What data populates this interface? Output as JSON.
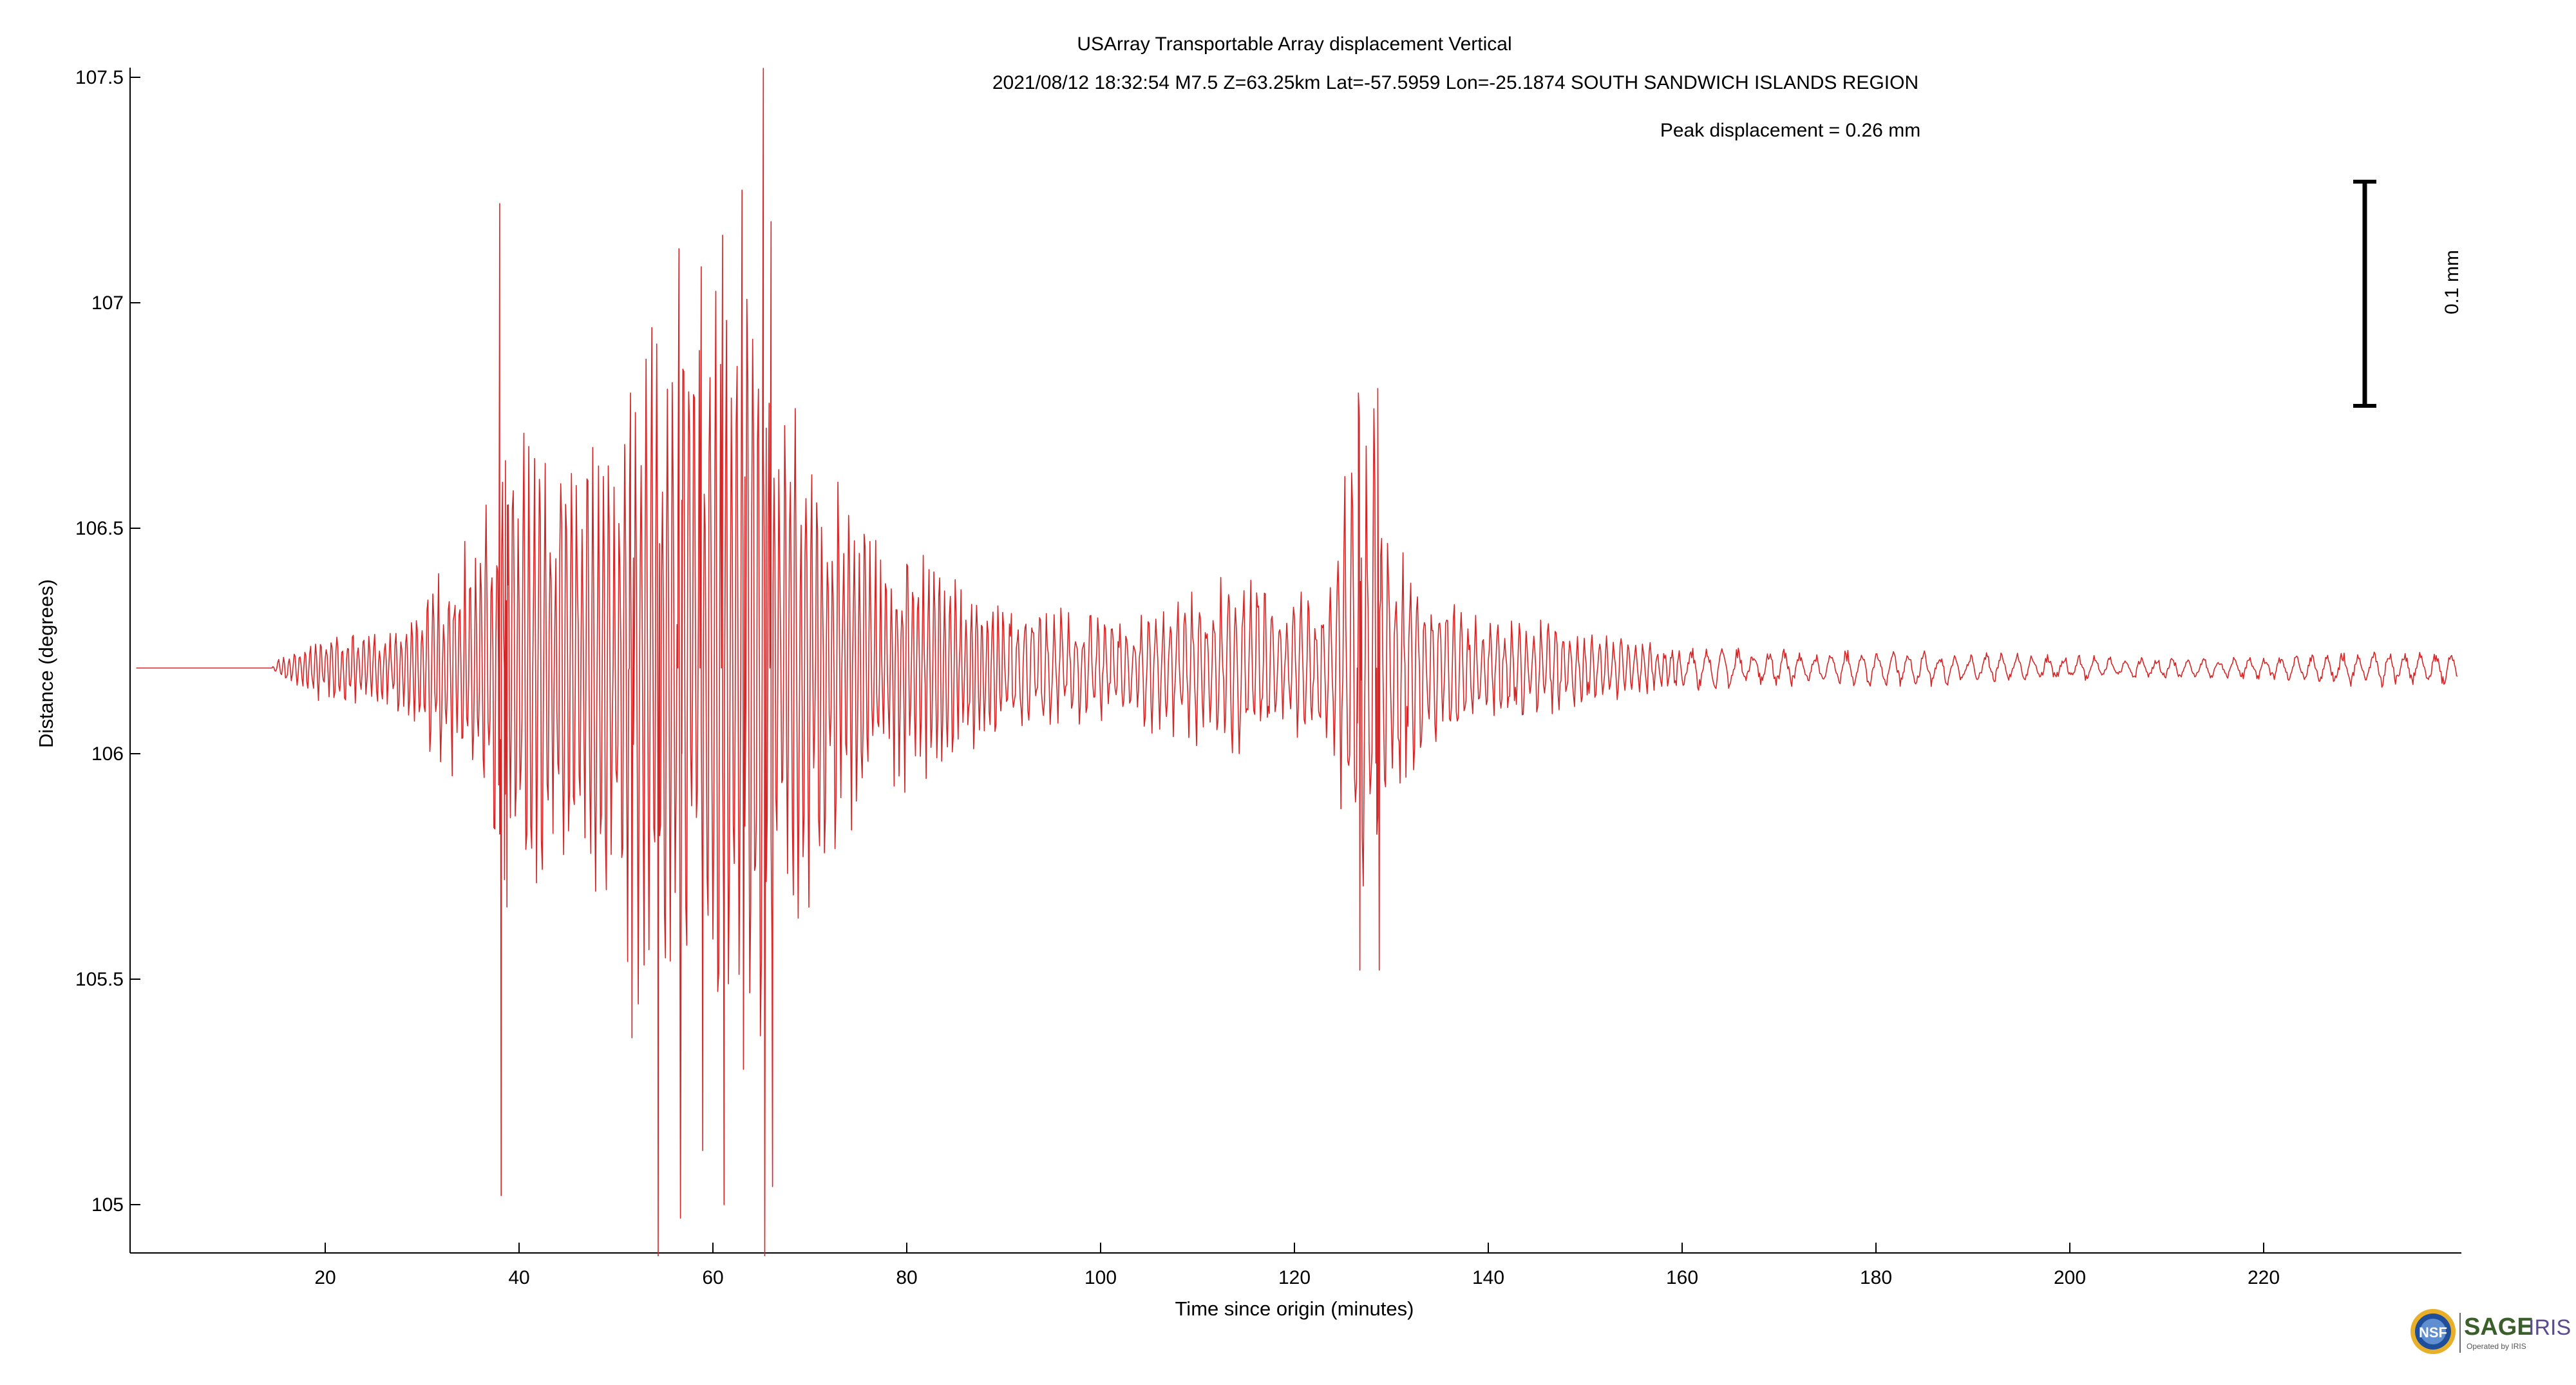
{
  "header": {
    "title": "USArray Transportable Array displacement   Vertical",
    "event_line": "2021/08/12  18:32:54  M7.5  Z=63.25km  Lat=-57.5959 Lon=-25.1874  SOUTH SANDWICH ISLANDS REGION",
    "peak_text": "Peak displacement = 0.26 mm"
  },
  "scale_bar": {
    "label": "0.1 mm",
    "value_mm": 0.1
  },
  "logo": {
    "sage_text": "SAGE",
    "iris_text": "IRIS",
    "sub_text": "Operated by IRIS",
    "nsf_text": "NSF"
  },
  "colors": {
    "trace": "#d62728",
    "axes": "#000000",
    "sage": "#3a5f2a",
    "iris": "#5b4a8f"
  },
  "chart_data": {
    "type": "line",
    "title": "USArray Transportable Array displacement   Vertical",
    "xlabel": "Time since origin (minutes)",
    "ylabel": "Distance (degrees)",
    "xlim": [
      0.5,
      240
    ],
    "ylim": [
      104.88,
      107.52
    ],
    "xticks": [
      20,
      40,
      60,
      80,
      100,
      120,
      140,
      160,
      180,
      200,
      220
    ],
    "yticks": [
      105,
      105.5,
      106,
      106.5,
      107,
      107.5
    ],
    "ytick_labels": [
      "105",
      "105.5",
      "106",
      "106.5",
      "107",
      "107.5"
    ],
    "grid": false,
    "series": [
      {
        "baseline_degrees": 106.19,
        "sample_step_min": 0.1,
        "envelope": [
          [
            0.5,
            0
          ],
          [
            14.5,
            0
          ],
          [
            15,
            0.02
          ],
          [
            18,
            0.06
          ],
          [
            22,
            0.1
          ],
          [
            26,
            0.08
          ],
          [
            30,
            0.16
          ],
          [
            33,
            0.3
          ],
          [
            36,
            0.35
          ],
          [
            38,
            0.5
          ],
          [
            40,
            0.6
          ],
          [
            45,
            0.45
          ],
          [
            50,
            0.6
          ],
          [
            54,
            0.95
          ],
          [
            57,
            0.85
          ],
          [
            61,
            0.9
          ],
          [
            64,
            1.0
          ],
          [
            66,
            0.95
          ],
          [
            68,
            0.65
          ],
          [
            72,
            0.45
          ],
          [
            78,
            0.3
          ],
          [
            85,
            0.22
          ],
          [
            95,
            0.14
          ],
          [
            102,
            0.12
          ],
          [
            110,
            0.2
          ],
          [
            114,
            0.24
          ],
          [
            119,
            0.16
          ],
          [
            124,
            0.2
          ],
          [
            126,
            0.6
          ],
          [
            128,
            0.62
          ],
          [
            130,
            0.3
          ],
          [
            133,
            0.22
          ],
          [
            138,
            0.12
          ],
          [
            146,
            0.11
          ],
          [
            150,
            0.09
          ],
          [
            157,
            0.06
          ],
          [
            165,
            0.05
          ],
          [
            175,
            0.04
          ],
          [
            180,
            0.045
          ],
          [
            200,
            0.03
          ],
          [
            215,
            0.025
          ],
          [
            225,
            0.03
          ],
          [
            230,
            0.045
          ],
          [
            240,
            0.04
          ]
        ],
        "peaks": [
          {
            "t": 38.0,
            "hi": 107.22,
            "lo": 105.02
          },
          {
            "t": 38.6,
            "hi": 106.65,
            "lo": 105.66
          },
          {
            "t": 51.5,
            "hi": 106.8,
            "lo": 105.37
          },
          {
            "t": 54.2,
            "hi": 106.88,
            "lo": 104.88
          },
          {
            "t": 56.5,
            "hi": 107.12,
            "lo": 104.97
          },
          {
            "t": 58.8,
            "hi": 107.08,
            "lo": 105.12
          },
          {
            "t": 61.0,
            "hi": 107.15,
            "lo": 105.0
          },
          {
            "t": 63.0,
            "hi": 107.25,
            "lo": 105.3
          },
          {
            "t": 65.2,
            "hi": 107.52,
            "lo": 104.88
          },
          {
            "t": 66.0,
            "hi": 107.18,
            "lo": 105.04
          },
          {
            "t": 126.6,
            "hi": 106.8,
            "lo": 105.52
          },
          {
            "t": 128.6,
            "hi": 106.81,
            "lo": 105.52
          }
        ]
      }
    ]
  }
}
